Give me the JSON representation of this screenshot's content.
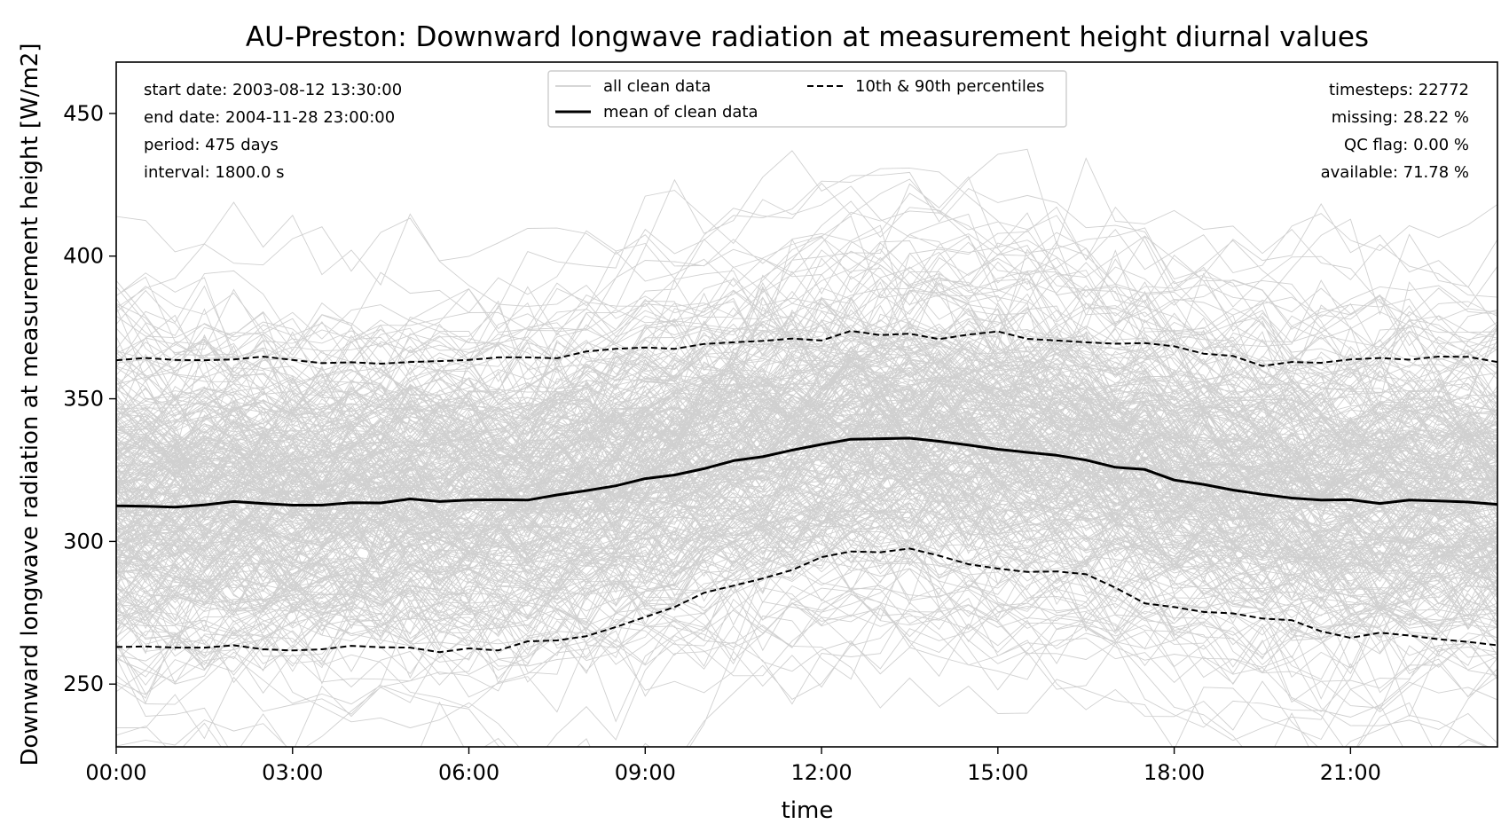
{
  "chart_data": {
    "type": "line",
    "title": "AU-Preston: Downward longwave radiation at measurement height diurnal values",
    "xlabel": "time",
    "ylabel": "Downward longwave radiation at measurement height [W/m2]",
    "xlim": [
      0,
      23.5
    ],
    "ylim": [
      228,
      468
    ],
    "x_ticks": [
      0,
      3,
      6,
      9,
      12,
      15,
      18,
      21
    ],
    "x_tick_labels": [
      "00:00",
      "03:00",
      "06:00",
      "09:00",
      "12:00",
      "15:00",
      "18:00",
      "21:00"
    ],
    "y_ticks": [
      250,
      300,
      350,
      400,
      450
    ],
    "y_tick_labels": [
      "250",
      "300",
      "350",
      "400",
      "450"
    ],
    "grid": false,
    "legend": {
      "placement": "top-center",
      "entries": [
        "all clean data",
        "mean of clean data",
        "10th & 90th percentiles"
      ]
    },
    "info_left": [
      "start date: 2003-08-12 13:30:00",
      "end date: 2004-11-28 23:00:00",
      "period: 475 days",
      "interval: 1800.0 s"
    ],
    "info_right": [
      "timesteps: 22772",
      "missing: 28.22 %",
      "QC flag: 0.00 %",
      "available: 71.78 %"
    ],
    "colors": {
      "clean": "#c8c8c8",
      "mean": "#000000",
      "percentile": "#000000"
    },
    "x": [
      0,
      0.5,
      1,
      1.5,
      2,
      2.5,
      3,
      3.5,
      4,
      4.5,
      5,
      5.5,
      6,
      6.5,
      7,
      7.5,
      8,
      8.5,
      9,
      9.5,
      10,
      10.5,
      11,
      11.5,
      12,
      12.5,
      13,
      13.5,
      14,
      14.5,
      15,
      15.5,
      16,
      16.5,
      17,
      17.5,
      18,
      18.5,
      19,
      19.5,
      20,
      20.5,
      21,
      21.5,
      22,
      22.5,
      23,
      23.5
    ],
    "series": [
      {
        "name": "mean of clean data",
        "style": "solid",
        "values": [
          312.5,
          312.3,
          312.0,
          312.8,
          314.0,
          313.3,
          312.7,
          312.7,
          313.6,
          313.5,
          314.9,
          314.0,
          314.5,
          314.6,
          314.5,
          316.3,
          317.8,
          319.5,
          322.0,
          323.3,
          325.5,
          328.3,
          329.7,
          332.0,
          334.0,
          335.8,
          336.0,
          336.2,
          335.1,
          333.8,
          332.3,
          331.2,
          330.2,
          328.5,
          326.0,
          325.2,
          321.5,
          320.0,
          318.0,
          316.5,
          315.2,
          314.5,
          314.6,
          313.3,
          314.5,
          314.2,
          313.8,
          313.0
        ]
      },
      {
        "name": "10th percentile",
        "style": "dashed",
        "values": [
          263.0,
          263.2,
          262.8,
          262.8,
          263.6,
          262.2,
          261.8,
          262.2,
          263.4,
          262.9,
          262.8,
          261.2,
          262.5,
          261.8,
          265.0,
          265.3,
          266.8,
          270.0,
          273.5,
          277.0,
          282.0,
          284.5,
          287.0,
          290.0,
          294.5,
          296.5,
          296.2,
          297.5,
          295.0,
          292.0,
          290.5,
          289.3,
          289.5,
          288.5,
          283.8,
          278.3,
          277.0,
          275.3,
          274.8,
          273.0,
          272.4,
          268.5,
          266.2,
          268.0,
          267.0,
          265.7,
          264.8,
          263.6
        ]
      },
      {
        "name": "90th percentile",
        "style": "dashed",
        "values": [
          363.5,
          364.3,
          363.6,
          363.5,
          363.8,
          364.8,
          363.6,
          362.5,
          362.8,
          362.3,
          362.9,
          363.2,
          363.6,
          364.5,
          364.5,
          364.2,
          366.6,
          367.5,
          368.0,
          367.5,
          369.2,
          369.8,
          370.3,
          371.1,
          370.4,
          373.8,
          372.3,
          372.8,
          370.9,
          372.5,
          373.6,
          371.0,
          370.4,
          369.8,
          369.3,
          369.5,
          368.4,
          365.8,
          365.0,
          361.5,
          362.9,
          362.6,
          363.8,
          364.3,
          363.7,
          364.8,
          364.7,
          362.9
        ]
      }
    ]
  }
}
